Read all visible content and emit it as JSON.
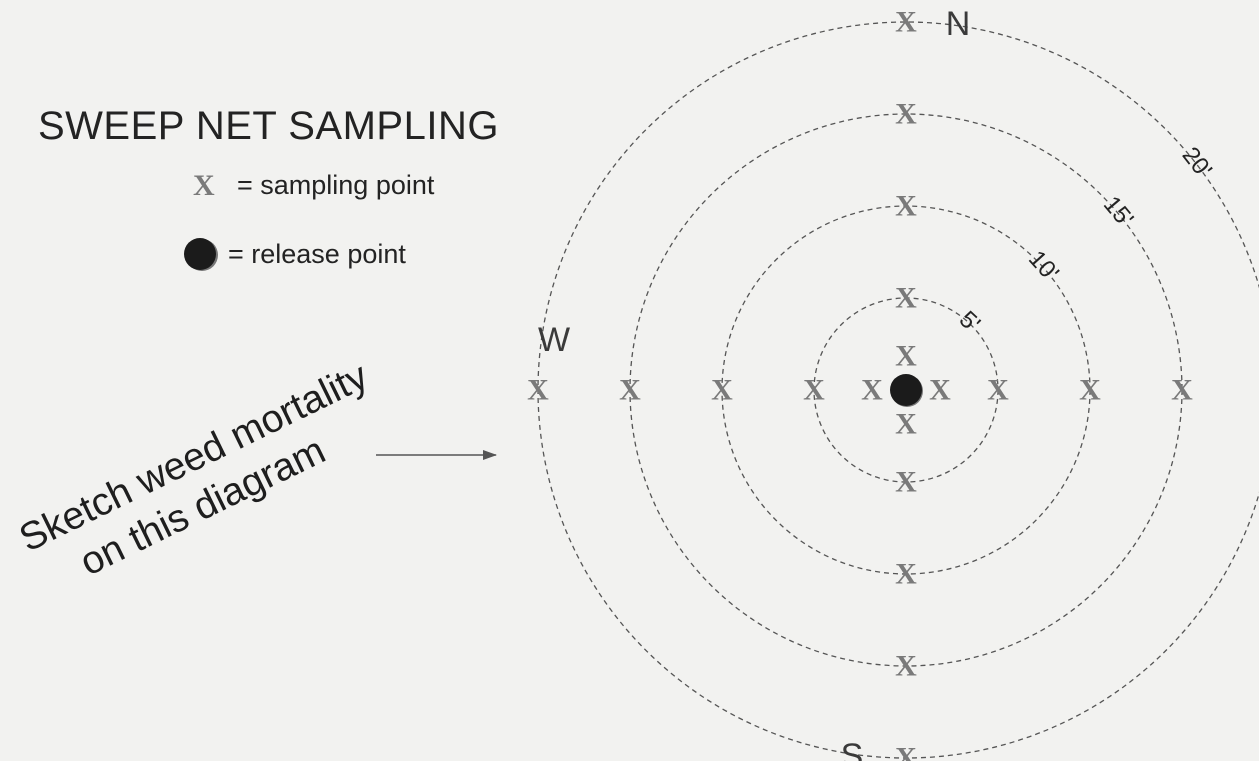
{
  "title": "SWEEP NET SAMPLING",
  "legend": {
    "sampling_symbol": "X",
    "sampling_label": "= sampling point",
    "release_label": "= release point"
  },
  "instruction": {
    "line1": "Sketch weed mortality",
    "line2": "on this diagram"
  },
  "directions": {
    "north": "N",
    "south": "S",
    "west": "W"
  },
  "rings": [
    {
      "distance": 5,
      "label": "5'"
    },
    {
      "distance": 10,
      "label": "10'"
    },
    {
      "distance": 15,
      "label": "15'"
    },
    {
      "distance": 20,
      "label": "20'"
    }
  ],
  "sampling_points": {
    "symbol": "X",
    "distances_along_each_axis": [
      2,
      5,
      10,
      15,
      20
    ],
    "axes": [
      "north",
      "south",
      "east",
      "west"
    ]
  },
  "colors": {
    "background": "#f2f2f0",
    "ring_stroke": "#555555",
    "sampling_x": "#7a7a7a",
    "release_point": "#1b1b1b",
    "text": "#232323"
  }
}
